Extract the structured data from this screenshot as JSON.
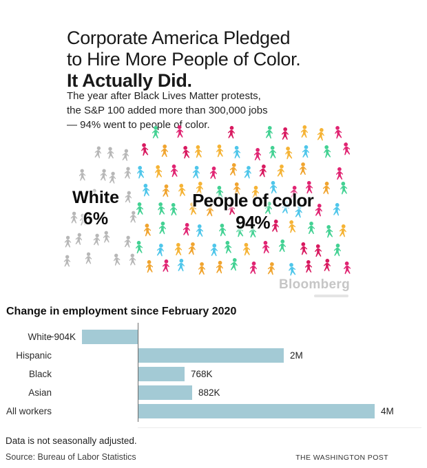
{
  "infographic": {
    "title_lines": [
      "Corporate America Pledged",
      "to Hire More People of Color."
    ],
    "title_emphasis": "It Actually Did.",
    "subtitle_lines": [
      "The year after Black Lives Matter protests,",
      "the S&P 100 added more than 300,000 jobs",
      "— 94% went to people of color."
    ],
    "attribution": "Bloomberg",
    "pictogram": {
      "groups": [
        {
          "id": "white",
          "label": "White",
          "percent": "6%",
          "icon_count": 22,
          "colors": [
            "#b7b7b7"
          ]
        },
        {
          "id": "poc",
          "label": "People of color",
          "percent": "94%",
          "icon_count": 90,
          "colors": [
            "#e02472",
            "#f0a42f",
            "#43d193",
            "#4fc6ea",
            "#d81a60",
            "#f5b335"
          ]
        }
      ]
    }
  },
  "chart_data": {
    "type": "bar",
    "orientation": "horizontal",
    "title": "Change in employment since February 2020",
    "categories": [
      "White",
      "Hispanic",
      "Black",
      "Asian",
      "All workers"
    ],
    "rows": [
      {
        "category": "White",
        "value_thousands": -904,
        "value_label": "−904K",
        "bar_fraction": 0.236,
        "negative": true
      },
      {
        "category": "Hispanic",
        "value_thousands": 2000,
        "value_label": "2M",
        "bar_fraction": 0.615,
        "negative": false
      },
      {
        "category": "Black",
        "value_thousands": 768,
        "value_label": "768K",
        "bar_fraction": 0.195,
        "negative": false
      },
      {
        "category": "Asian",
        "value_thousands": 882,
        "value_label": "882K",
        "bar_fraction": 0.227,
        "negative": false
      },
      {
        "category": "All workers",
        "value_thousands": 4000,
        "value_label": "4M",
        "bar_fraction": 1.0,
        "negative": false
      }
    ],
    "bar_color": "#a3cad5",
    "axis_color": "#6b6b6b",
    "legend": "none",
    "grid": "off",
    "note": "Data is not seasonally adjusted.",
    "source": "Source: Bureau of Labor Statistics",
    "credit": "THE WASHINGTON POST"
  }
}
